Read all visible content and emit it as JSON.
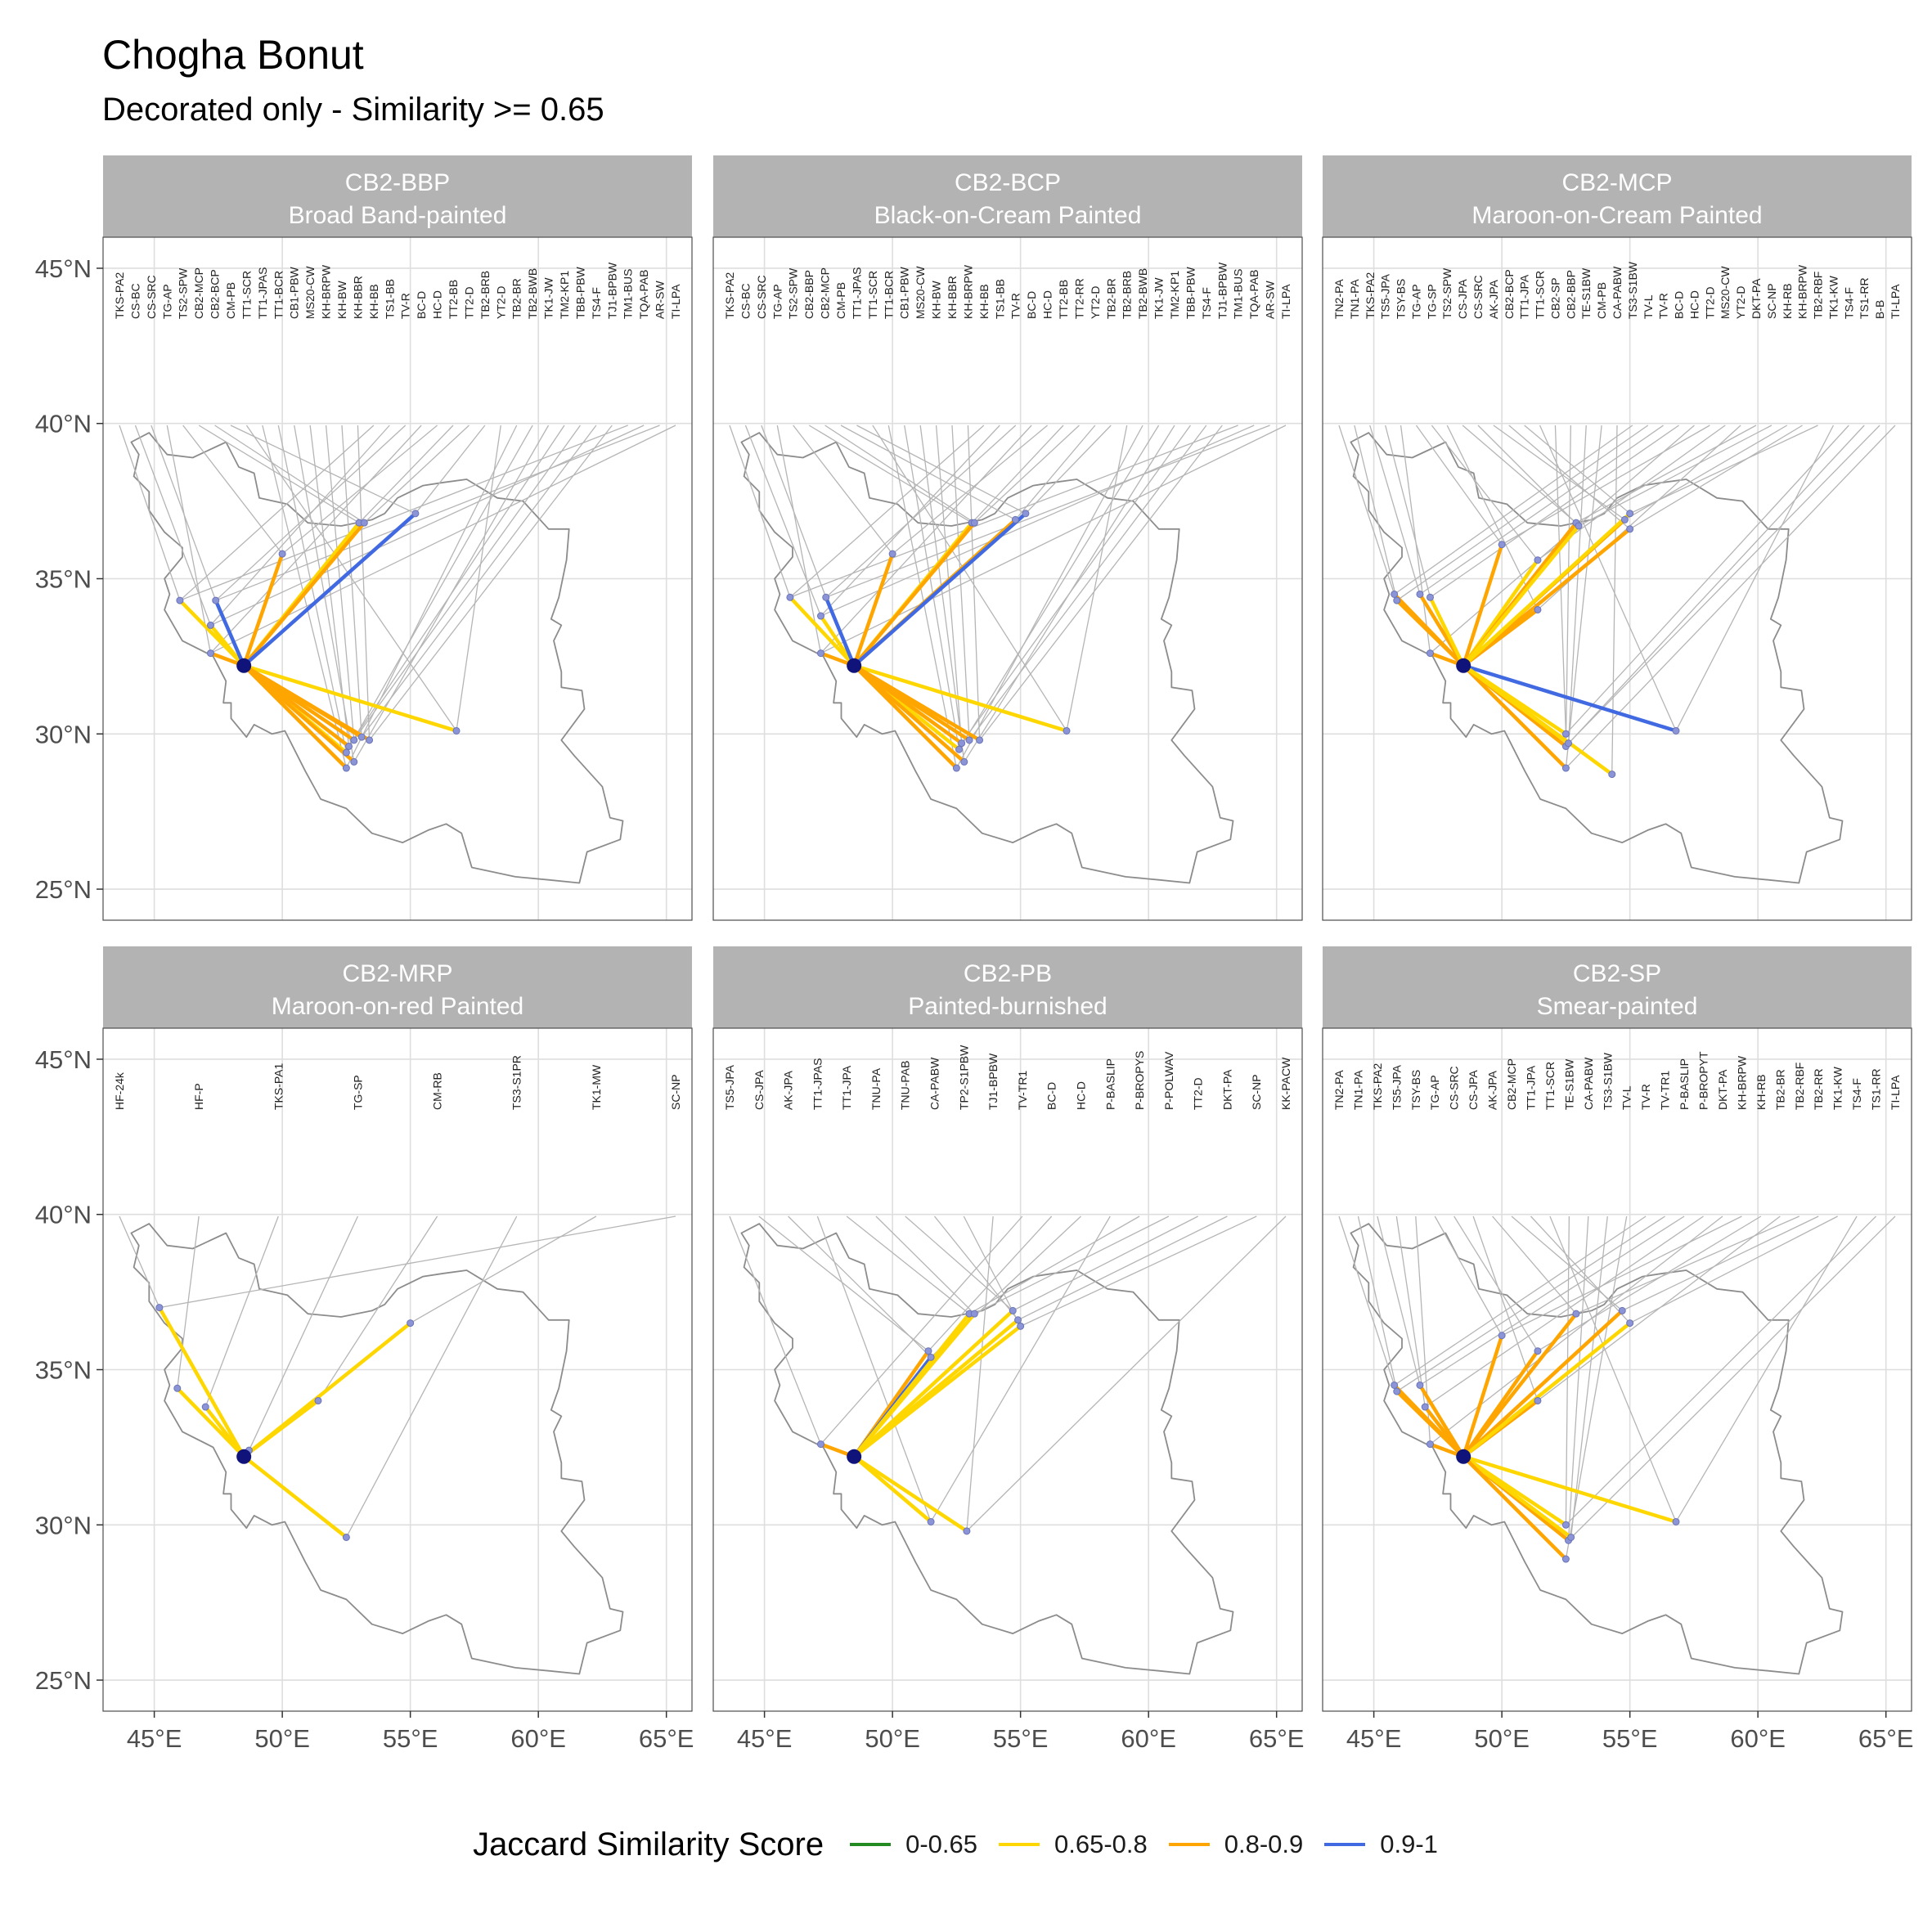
{
  "title": "Chogha Bonut",
  "subtitle": "Decorated only - Similarity >= 0.65",
  "legend": {
    "title": "Jaccard Similarity Score",
    "items": [
      {
        "label": "0-0.65",
        "color": "#228B22"
      },
      {
        "label": "0.65-0.8",
        "color": "#FFD700"
      },
      {
        "label": "0.8-0.9",
        "color": "#FFA500"
      },
      {
        "label": "0.9-1",
        "color": "#4169E1"
      }
    ]
  },
  "chart_data": {
    "type": "map",
    "axes": {
      "lon_ticks": [
        "45°E",
        "50°E",
        "55°E",
        "60°E",
        "65°E"
      ],
      "lat_ticks": [
        "25°N",
        "30°N",
        "35°N",
        "40°N",
        "45°N"
      ],
      "xlim": [
        43,
        66
      ],
      "ylim": [
        24,
        46
      ],
      "grid": true
    },
    "origin": {
      "name": "Chogha Bonut",
      "lon": 48.5,
      "lat": 32.2
    },
    "panels": [
      {
        "code": "CB2-BBP",
        "name": "Broad Band-painted",
        "labels": [
          "TKS-PA2",
          "CS-BC",
          "CS-SRC",
          "TG-AP",
          "TS2-SPW",
          "CB2-MCP",
          "CB2-BCP",
          "CM-PB",
          "TT1-SCR",
          "TT1-JPAS",
          "TT1-BCR",
          "CB1-PBW",
          "MS20-CW",
          "KH-BRPW",
          "KH-BW",
          "KH-BBR",
          "KH-BB",
          "TS1-BB",
          "TV-R",
          "BC-D",
          "HC-D",
          "TT2-BB",
          "TT2-D",
          "TB2-BRB",
          "YT2-D",
          "TB2-BR",
          "TB2-BWB",
          "TK1-JW",
          "TM2-KP1",
          "TBB-PBW",
          "TS4-F",
          "TJ1-BPBW",
          "TM1-BUS",
          "TQA-PAB",
          "AR-SW",
          "TI-LPA"
        ],
        "links": [
          {
            "lon": 46.0,
            "lat": 34.3,
            "score": 0.75
          },
          {
            "lon": 47.2,
            "lat": 33.5,
            "score": 0.75
          },
          {
            "lon": 47.4,
            "lat": 34.3,
            "score": 0.95
          },
          {
            "lon": 47.2,
            "lat": 32.6,
            "score": 0.85
          },
          {
            "lon": 50.0,
            "lat": 35.8,
            "score": 0.85
          },
          {
            "lon": 53.0,
            "lat": 36.8,
            "score": 0.75
          },
          {
            "lon": 53.2,
            "lat": 36.8,
            "score": 0.85
          },
          {
            "lon": 55.2,
            "lat": 37.1,
            "score": 0.95
          },
          {
            "lon": 56.8,
            "lat": 30.1,
            "score": 0.75
          },
          {
            "lon": 52.5,
            "lat": 28.9,
            "score": 0.85
          },
          {
            "lon": 52.5,
            "lat": 29.4,
            "score": 0.75
          },
          {
            "lon": 52.8,
            "lat": 29.1,
            "score": 0.85
          },
          {
            "lon": 52.6,
            "lat": 29.6,
            "score": 0.85
          },
          {
            "lon": 52.8,
            "lat": 29.8,
            "score": 0.85
          },
          {
            "lon": 53.1,
            "lat": 29.9,
            "score": 0.85
          },
          {
            "lon": 53.4,
            "lat": 29.8,
            "score": 0.85
          }
        ]
      },
      {
        "code": "CB2-BCP",
        "name": "Black-on-Cream Painted",
        "labels": [
          "TKS-PA2",
          "CS-BC",
          "CS-SRC",
          "TG-AP",
          "TS2-SPW",
          "CB2-BBP",
          "CB2-MCP",
          "CM-PB",
          "TT1-JPAS",
          "TT1-SCR",
          "TT1-BCR",
          "CB1-PBW",
          "MS20-CW",
          "KH-BW",
          "KH-BBR",
          "KH-BRPW",
          "KH-BB",
          "TS1-BB",
          "TV-R",
          "BC-D",
          "HC-D",
          "TT2-BB",
          "TT2-RR",
          "YT2-D",
          "TB2-BR",
          "TB2-BRB",
          "TB2-BWB",
          "TK1-JW",
          "TM2-KP1",
          "TBB-PBW",
          "TS4-F",
          "TJ1-BPBW",
          "TM1-BUS",
          "TQA-PAB",
          "AR-SW",
          "TI-LPA"
        ],
        "links": [
          {
            "lon": 46.0,
            "lat": 34.4,
            "score": 0.75
          },
          {
            "lon": 47.2,
            "lat": 33.8,
            "score": 0.75
          },
          {
            "lon": 47.4,
            "lat": 34.4,
            "score": 0.95
          },
          {
            "lon": 47.2,
            "lat": 32.6,
            "score": 0.85
          },
          {
            "lon": 50.0,
            "lat": 35.8,
            "score": 0.85
          },
          {
            "lon": 53.1,
            "lat": 36.8,
            "score": 0.75
          },
          {
            "lon": 53.2,
            "lat": 36.8,
            "score": 0.85
          },
          {
            "lon": 54.8,
            "lat": 36.9,
            "score": 0.85
          },
          {
            "lon": 55.2,
            "lat": 37.1,
            "score": 0.95
          },
          {
            "lon": 56.8,
            "lat": 30.1,
            "score": 0.75
          },
          {
            "lon": 52.5,
            "lat": 28.9,
            "score": 0.85
          },
          {
            "lon": 52.6,
            "lat": 29.5,
            "score": 0.75
          },
          {
            "lon": 52.8,
            "lat": 29.1,
            "score": 0.85
          },
          {
            "lon": 52.7,
            "lat": 29.7,
            "score": 0.85
          },
          {
            "lon": 53.0,
            "lat": 29.8,
            "score": 0.85
          },
          {
            "lon": 53.4,
            "lat": 29.8,
            "score": 0.85
          }
        ]
      },
      {
        "code": "CB2-MCP",
        "name": "Maroon-on-Cream Painted",
        "labels": [
          "TN2-PA",
          "TN1-PA",
          "TKS-PA2",
          "TS5-JPA",
          "TSY-BS",
          "TG-AP",
          "TG-SP",
          "TS2-SPW",
          "CS-JPA",
          "CS-SRC",
          "AK-JPA",
          "CB2-BCP",
          "TT1-JPA",
          "TT1-SCR",
          "CB2-SP",
          "CB2-BBP",
          "TE-S1BW",
          "CM-PB",
          "CA-PABW",
          "TS3-S1BW",
          "TV-L",
          "TV-R",
          "BC-D",
          "HC-D",
          "TT2-D",
          "MS20-CW",
          "YT2-D",
          "DKT-PA",
          "SC-NP",
          "KH-RB",
          "KH-BRPW",
          "TB2-RBF",
          "TK1-KW",
          "TS4-F",
          "TS1-RR",
          "B-B",
          "TI-LPA"
        ],
        "links": [
          {
            "lon": 45.8,
            "lat": 34.5,
            "score": 0.85
          },
          {
            "lon": 45.9,
            "lat": 34.3,
            "score": 0.85
          },
          {
            "lon": 46.8,
            "lat": 34.5,
            "score": 0.85
          },
          {
            "lon": 47.2,
            "lat": 34.4,
            "score": 0.75
          },
          {
            "lon": 47.2,
            "lat": 32.6,
            "score": 0.85
          },
          {
            "lon": 50.0,
            "lat": 36.1,
            "score": 0.85
          },
          {
            "lon": 51.4,
            "lat": 35.6,
            "score": 0.75
          },
          {
            "lon": 51.4,
            "lat": 34.0,
            "score": 0.85
          },
          {
            "lon": 52.9,
            "lat": 36.8,
            "score": 0.85
          },
          {
            "lon": 53.0,
            "lat": 36.7,
            "score": 0.75
          },
          {
            "lon": 54.8,
            "lat": 36.9,
            "score": 0.85
          },
          {
            "lon": 55.0,
            "lat": 36.6,
            "score": 0.85
          },
          {
            "lon": 55.0,
            "lat": 37.1,
            "score": 0.75
          },
          {
            "lon": 56.8,
            "lat": 30.1,
            "score": 0.95
          },
          {
            "lon": 52.5,
            "lat": 30.0,
            "score": 0.75
          },
          {
            "lon": 52.5,
            "lat": 29.6,
            "score": 0.85
          },
          {
            "lon": 52.6,
            "lat": 29.7,
            "score": 0.75
          },
          {
            "lon": 52.5,
            "lat": 28.9,
            "score": 0.85
          },
          {
            "lon": 54.3,
            "lat": 28.7,
            "score": 0.75
          }
        ]
      },
      {
        "code": "CB2-MRP",
        "name": "Maroon-on-red Painted",
        "labels": [
          "HF-24k",
          "HF-P",
          "TKS-PA1",
          "TG-SP",
          "CM-RB",
          "TS3-S1PR",
          "TK1-MW",
          "SC-NP"
        ],
        "links": [
          {
            "lon": 45.2,
            "lat": 37.0,
            "score": 0.75
          },
          {
            "lon": 45.9,
            "lat": 34.4,
            "score": 0.75
          },
          {
            "lon": 47.0,
            "lat": 33.8,
            "score": 0.75
          },
          {
            "lon": 48.7,
            "lat": 32.4,
            "score": 0.75
          },
          {
            "lon": 51.4,
            "lat": 34.0,
            "score": 0.75
          },
          {
            "lon": 52.5,
            "lat": 29.6,
            "score": 0.75
          },
          {
            "lon": 55.0,
            "lat": 36.5,
            "score": 0.75
          }
        ]
      },
      {
        "code": "CB2-PB",
        "name": "Painted-burnished",
        "labels": [
          "TS5-JPA",
          "CS-JPA",
          "AK-JPA",
          "TT1-JPAS",
          "TT1-JPA",
          "TNU-PA",
          "TNU-PAB",
          "CA-PABW",
          "TP2-S1PBW",
          "TJ1-BPBW",
          "TV-TR1",
          "BC-D",
          "HC-D",
          "P-BASLIP",
          "P-BROPYS",
          "P-POLWAV",
          "TT2-D",
          "DKT-PA",
          "SC-NP",
          "KK-PACW"
        ],
        "links": [
          {
            "lon": 47.2,
            "lat": 32.6,
            "score": 0.85
          },
          {
            "lon": 51.4,
            "lat": 35.6,
            "score": 0.85
          },
          {
            "lon": 51.5,
            "lat": 35.4,
            "score": 0.95
          },
          {
            "lon": 51.5,
            "lat": 30.1,
            "score": 0.75
          },
          {
            "lon": 53.0,
            "lat": 36.8,
            "score": 0.75
          },
          {
            "lon": 53.2,
            "lat": 36.8,
            "score": 0.75
          },
          {
            "lon": 54.7,
            "lat": 36.9,
            "score": 0.75
          },
          {
            "lon": 54.9,
            "lat": 36.6,
            "score": 0.75
          },
          {
            "lon": 55.0,
            "lat": 36.4,
            "score": 0.75
          },
          {
            "lon": 52.9,
            "lat": 29.8,
            "score": 0.75
          }
        ]
      },
      {
        "code": "CB2-SP",
        "name": "Smear-painted",
        "labels": [
          "TN2-PA",
          "TN1-PA",
          "TKS-PA2",
          "TS5-JPA",
          "TSY-BS",
          "TG-AP",
          "CS-SRC",
          "CS-JPA",
          "AK-JPA",
          "CB2-MCP",
          "TT1-JPA",
          "TT1-SCR",
          "TE-S1BW",
          "CA-PABW",
          "TS3-S1BW",
          "TV-L",
          "TV-R",
          "TV-TR1",
          "P-BASLIP",
          "P-BROPYT",
          "DKT-PA",
          "KH-BRPW",
          "KH-RB",
          "TB2-BR",
          "TB2-RBF",
          "TB2-RR",
          "TK1-KW",
          "TS4-F",
          "TS1-RR",
          "TI-LPA"
        ],
        "links": [
          {
            "lon": 45.8,
            "lat": 34.5,
            "score": 0.85
          },
          {
            "lon": 45.9,
            "lat": 34.3,
            "score": 0.85
          },
          {
            "lon": 46.8,
            "lat": 34.5,
            "score": 0.85
          },
          {
            "lon": 47.0,
            "lat": 33.8,
            "score": 0.85
          },
          {
            "lon": 47.2,
            "lat": 32.6,
            "score": 0.85
          },
          {
            "lon": 50.0,
            "lat": 36.1,
            "score": 0.85
          },
          {
            "lon": 51.4,
            "lat": 35.6,
            "score": 0.85
          },
          {
            "lon": 51.4,
            "lat": 34.0,
            "score": 0.85
          },
          {
            "lon": 52.9,
            "lat": 36.8,
            "score": 0.85
          },
          {
            "lon": 54.7,
            "lat": 36.9,
            "score": 0.85
          },
          {
            "lon": 55.0,
            "lat": 36.5,
            "score": 0.75
          },
          {
            "lon": 56.8,
            "lat": 30.1,
            "score": 0.75
          },
          {
            "lon": 52.5,
            "lat": 30.0,
            "score": 0.75
          },
          {
            "lon": 52.6,
            "lat": 29.5,
            "score": 0.85
          },
          {
            "lon": 52.7,
            "lat": 29.6,
            "score": 0.75
          },
          {
            "lon": 52.5,
            "lat": 28.9,
            "score": 0.85
          }
        ]
      }
    ],
    "iran_outline": [
      [
        44.1,
        39.4
      ],
      [
        44.8,
        39.7
      ],
      [
        45.5,
        39.0
      ],
      [
        46.5,
        38.9
      ],
      [
        47.8,
        39.4
      ],
      [
        48.3,
        38.6
      ],
      [
        48.9,
        38.4
      ],
      [
        49.1,
        37.6
      ],
      [
        50.2,
        37.4
      ],
      [
        51.0,
        36.8
      ],
      [
        52.3,
        36.7
      ],
      [
        53.5,
        36.9
      ],
      [
        54.0,
        37.1
      ],
      [
        54.5,
        37.6
      ],
      [
        55.5,
        38.0
      ],
      [
        56.3,
        38.1
      ],
      [
        57.2,
        38.2
      ],
      [
        58.4,
        37.6
      ],
      [
        59.4,
        37.5
      ],
      [
        60.4,
        36.6
      ],
      [
        61.2,
        36.6
      ],
      [
        61.1,
        35.6
      ],
      [
        60.8,
        34.4
      ],
      [
        60.5,
        33.7
      ],
      [
        60.9,
        33.5
      ],
      [
        60.6,
        33.0
      ],
      [
        60.9,
        32.0
      ],
      [
        60.9,
        31.5
      ],
      [
        61.7,
        31.4
      ],
      [
        61.8,
        30.8
      ],
      [
        60.9,
        29.8
      ],
      [
        61.4,
        29.3
      ],
      [
        62.5,
        28.3
      ],
      [
        62.8,
        27.3
      ],
      [
        63.3,
        27.2
      ],
      [
        63.2,
        26.6
      ],
      [
        61.9,
        26.2
      ],
      [
        61.6,
        25.2
      ],
      [
        60.4,
        25.3
      ],
      [
        59.1,
        25.4
      ],
      [
        57.4,
        25.7
      ],
      [
        57.0,
        26.8
      ],
      [
        56.4,
        27.1
      ],
      [
        55.7,
        26.9
      ],
      [
        54.7,
        26.5
      ],
      [
        53.5,
        26.8
      ],
      [
        52.5,
        27.6
      ],
      [
        51.5,
        27.9
      ],
      [
        50.9,
        28.8
      ],
      [
        50.1,
        30.1
      ],
      [
        49.6,
        30.0
      ],
      [
        48.9,
        30.3
      ],
      [
        48.6,
        29.9
      ],
      [
        48.0,
        30.5
      ],
      [
        48.0,
        31.0
      ],
      [
        47.7,
        31.0
      ],
      [
        47.8,
        31.7
      ],
      [
        47.3,
        32.5
      ],
      [
        46.1,
        33.0
      ],
      [
        45.4,
        34.0
      ],
      [
        45.6,
        34.5
      ],
      [
        45.4,
        35.0
      ],
      [
        46.1,
        35.7
      ],
      [
        46.1,
        36.0
      ],
      [
        45.4,
        36.5
      ],
      [
        44.8,
        37.2
      ],
      [
        44.8,
        37.8
      ],
      [
        44.2,
        38.3
      ],
      [
        44.4,
        39.0
      ],
      [
        44.1,
        39.4
      ]
    ]
  }
}
